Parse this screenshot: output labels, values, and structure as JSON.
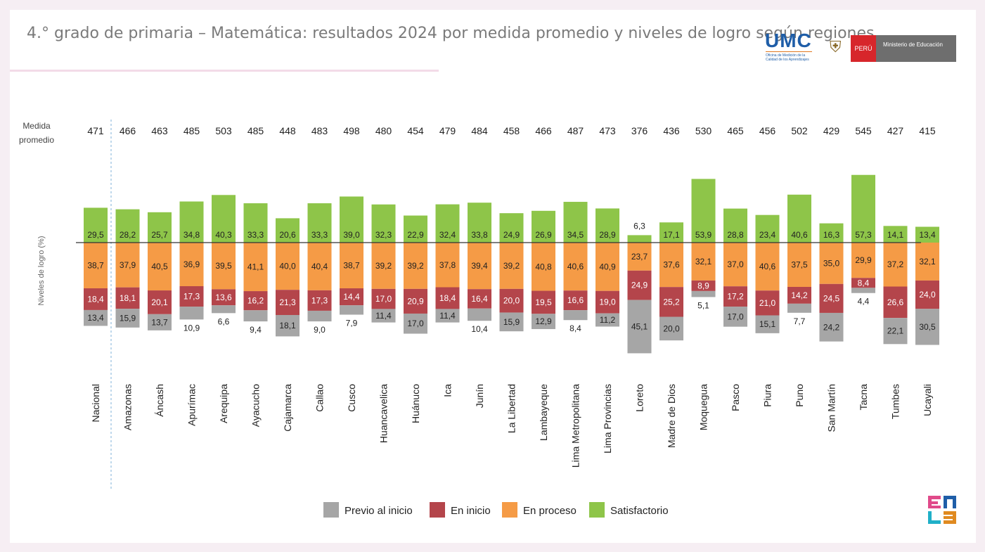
{
  "title": "4.° grado de primaria – Matemática: resultados 2024 por medida promedio y niveles de logro según regiones",
  "logos": {
    "umc": "UMC",
    "umc_sub": "Oficina de Medición de la Calidad de los Aprendizajes",
    "peru": "PERÚ",
    "ministerio": "Ministerio de Educación",
    "enla_icon": "enla-logo"
  },
  "colors": {
    "previo": "#a6a6a6",
    "inicio": "#b4454b",
    "proceso": "#f59b46",
    "satisfactorio": "#8ec549",
    "axis": "#333333",
    "text": "#222222"
  },
  "chart_data": {
    "type": "bar",
    "subtype": "diverging-stacked",
    "title": "",
    "ylabel": "Niveles de logro (%)",
    "mean_label": "Medida promedio",
    "categories": [
      "Nacional",
      "Amazonas",
      "Áncash",
      "Apurímac",
      "Arequipa",
      "Ayacucho",
      "Cajamarca",
      "Callao",
      "Cusco",
      "Huancavelica",
      "Huánuco",
      "Ica",
      "Junín",
      "La Libertad",
      "Lambayeque",
      "Lima Metropolitana",
      "Lima Provincias",
      "Loreto",
      "Madre de Dios",
      "Moquegua",
      "Pasco",
      "Piura",
      "Puno",
      "San Martín",
      "Tacna",
      "Tumbes",
      "Ucayali"
    ],
    "mean_scores": [
      "471",
      "466",
      "463",
      "485",
      "503",
      "485",
      "448",
      "483",
      "498",
      "480",
      "454",
      "479",
      "484",
      "458",
      "466",
      "487",
      "473",
      "376",
      "436",
      "530",
      "465",
      "456",
      "502",
      "429",
      "545",
      "427",
      "415"
    ],
    "series": [
      {
        "name": "Previo al inicio",
        "labels": [
          "13,4",
          "15,9",
          "13,7",
          "10,9",
          "6,6",
          "9,4",
          "18,1",
          "9,0",
          "7,9",
          "11,4",
          "17,0",
          "11,4",
          "10,4",
          "15,9",
          "12,9",
          "8,4",
          "11,2",
          "45,1",
          "20,0",
          "5,1",
          "17,0",
          "15,1",
          "7,7",
          "24,2",
          "4,4",
          "22,1",
          "30,5"
        ]
      },
      {
        "name": "En inicio",
        "labels": [
          "18,4",
          "18,1",
          "20,1",
          "17,3",
          "13,6",
          "16,2",
          "21,3",
          "17,3",
          "14,4",
          "17,0",
          "20,9",
          "18,4",
          "16,4",
          "20,0",
          "19,5",
          "16,6",
          "19,0",
          "24,9",
          "25,2",
          "8,9",
          "17,2",
          "21,0",
          "14,2",
          "24,5",
          "8,4",
          "26,6",
          "24,0"
        ]
      },
      {
        "name": "En proceso",
        "labels": [
          "38,7",
          "37,9",
          "40,5",
          "36,9",
          "39,5",
          "41,1",
          "40,0",
          "40,4",
          "38,7",
          "39,2",
          "39,2",
          "37,8",
          "39,4",
          "39,2",
          "40,8",
          "40,6",
          "40,9",
          "23,7",
          "37,6",
          "32,1",
          "37,0",
          "40,6",
          "37,5",
          "35,0",
          "29,9",
          "37,2",
          "32,1"
        ]
      },
      {
        "name": "Satisfactorio",
        "labels": [
          "29,5",
          "28,2",
          "25,7",
          "34,8",
          "40,3",
          "33,3",
          "20,6",
          "33,3",
          "39,0",
          "32,3",
          "22,9",
          "32,4",
          "33,8",
          "24,9",
          "26,9",
          "34,5",
          "28,9",
          "6,3",
          "17,1",
          "53,9",
          "28,8",
          "23,4",
          "40,6",
          "16,3",
          "57,3",
          "14,1",
          "13,4"
        ]
      }
    ],
    "legend": [
      "Previo al inicio",
      "En inicio",
      "En proceso",
      "Satisfactorio"
    ],
    "legend_position": "bottom",
    "baseline": "between En proceso and Satisfactorio"
  }
}
